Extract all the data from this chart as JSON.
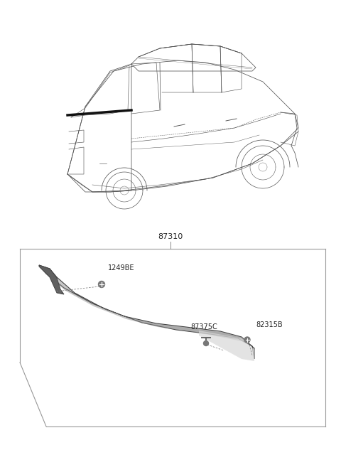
{
  "bg_color": "#ffffff",
  "part_label_87310": "87310",
  "part_label_1249BE": "1249BE",
  "part_label_87375C": "87375C",
  "part_label_82315B": "82315B",
  "text_color": "#222222",
  "line_color": "#333333",
  "moulding_light": "#c8c8c8",
  "moulding_dark": "#888888",
  "moulding_edge": "#444444",
  "font_size_label": 7.0,
  "font_size_partno": 8.0,
  "box_edge_color": "#999999",
  "car_line_color": "#555555",
  "car_line_lw": 0.55
}
